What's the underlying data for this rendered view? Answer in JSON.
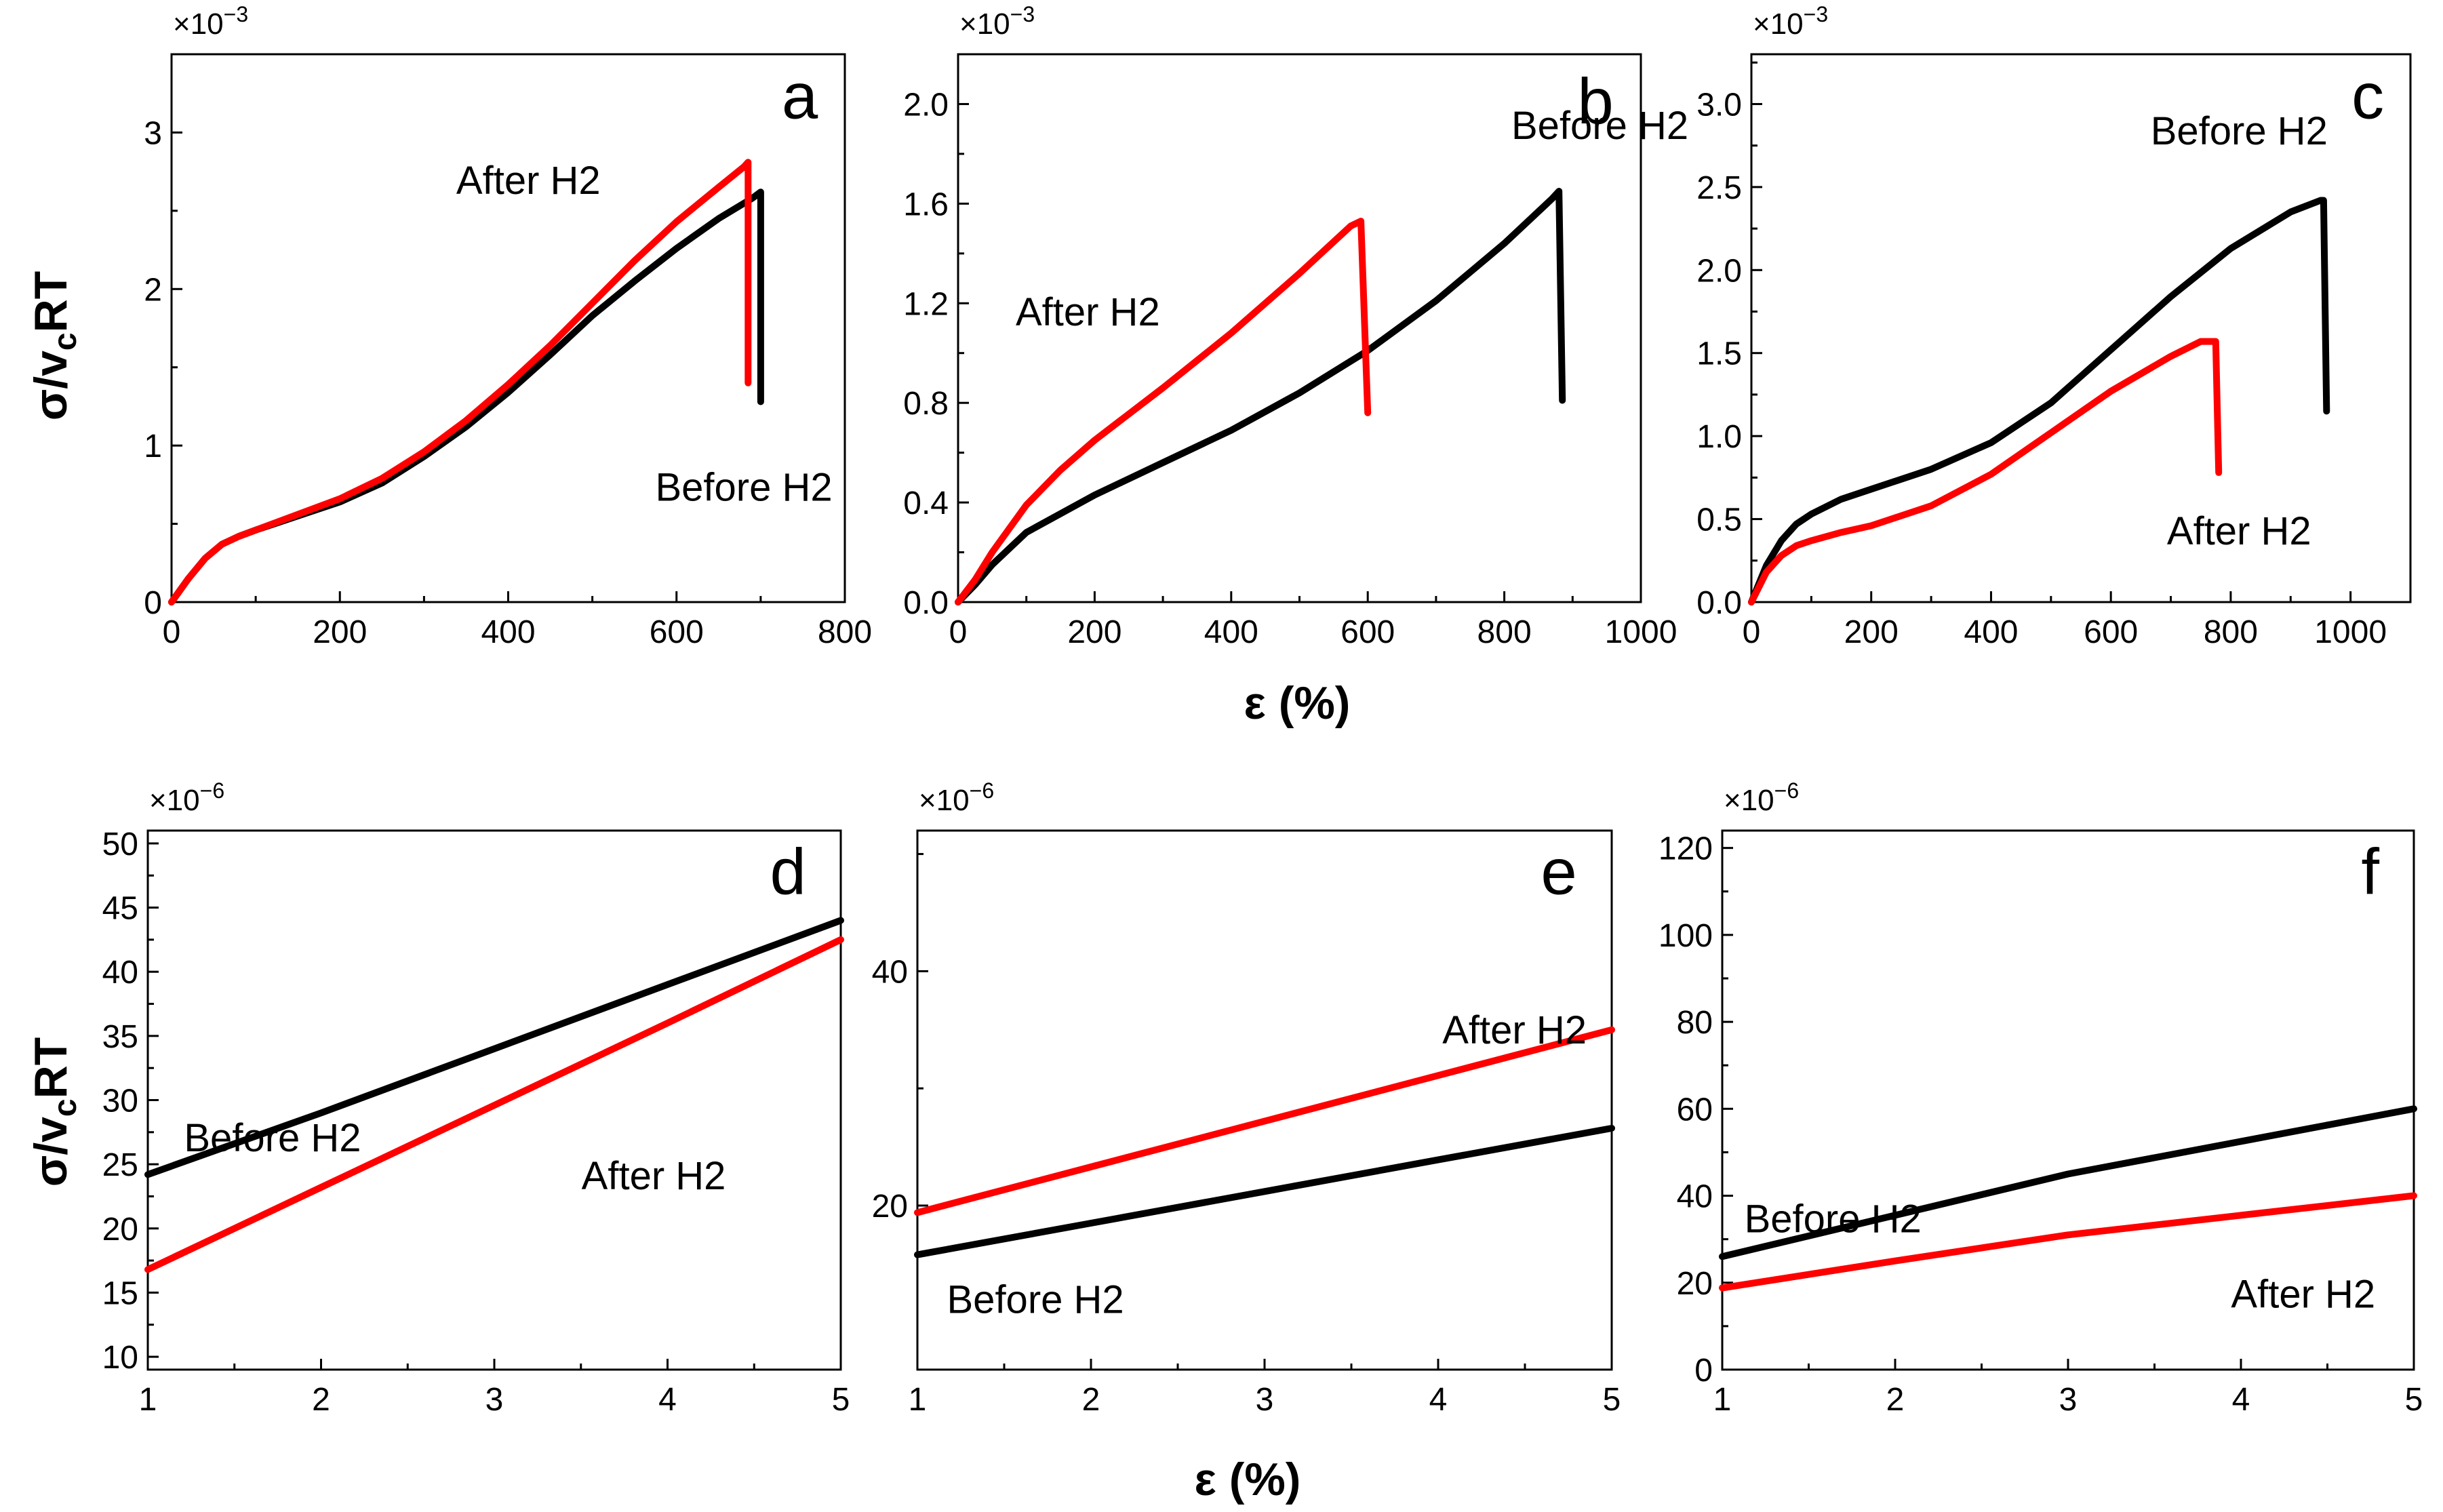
{
  "figure": {
    "ylabel_main": "σ/v",
    "ylabel_sub": "c",
    "ylabel_tail": "RT",
    "xlabel": "ε (%)"
  },
  "colors": {
    "before": "#000000",
    "after": "#ff0000"
  },
  "chart_data": [
    {
      "type": "line",
      "panel": "a",
      "multiplier": "×10",
      "multiplier_exp": "−3",
      "xlim": [
        0,
        800
      ],
      "ylim": [
        0,
        3.5
      ],
      "xticks": [
        0,
        200,
        400,
        600,
        800
      ],
      "xtick_labels": [
        "0",
        "200",
        "400",
        "600",
        "800"
      ],
      "yticks": [
        0,
        1,
        2,
        3
      ],
      "ytick_labels": [
        "0",
        "1",
        "2",
        "3"
      ],
      "series": [
        {
          "name": "Before H2",
          "color": "#000000",
          "x": [
            0,
            20,
            40,
            60,
            80,
            100,
            150,
            200,
            250,
            300,
            350,
            400,
            450,
            500,
            550,
            600,
            650,
            690,
            700,
            700
          ],
          "y": [
            0,
            0.15,
            0.28,
            0.37,
            0.42,
            0.46,
            0.55,
            0.64,
            0.76,
            0.93,
            1.12,
            1.34,
            1.58,
            1.83,
            2.05,
            2.26,
            2.45,
            2.58,
            2.62,
            1.28
          ]
        },
        {
          "name": "After H2",
          "color": "#ff0000",
          "x": [
            0,
            20,
            40,
            60,
            80,
            100,
            150,
            200,
            250,
            300,
            350,
            400,
            450,
            500,
            550,
            600,
            650,
            680,
            685,
            685
          ],
          "y": [
            0,
            0.15,
            0.28,
            0.37,
            0.42,
            0.46,
            0.56,
            0.66,
            0.79,
            0.96,
            1.16,
            1.39,
            1.64,
            1.91,
            2.18,
            2.43,
            2.65,
            2.78,
            2.81,
            1.4
          ]
        }
      ],
      "annotations": [
        "After H2",
        "Before H2"
      ]
    },
    {
      "type": "line",
      "panel": "b",
      "multiplier": "×10",
      "multiplier_exp": "−3",
      "xlim": [
        0,
        1000
      ],
      "ylim": [
        0,
        2.2
      ],
      "xticks": [
        0,
        200,
        400,
        600,
        800,
        1000
      ],
      "xtick_labels": [
        "0",
        "200",
        "400",
        "600",
        "800",
        "1000"
      ],
      "yticks": [
        0,
        0.4,
        0.8,
        1.2,
        1.6,
        2.0
      ],
      "ytick_labels": [
        "0.0",
        "0.4",
        "0.8",
        "1.2",
        "1.6",
        "2.0"
      ],
      "series": [
        {
          "name": "Before H2",
          "color": "#000000",
          "x": [
            0,
            25,
            50,
            100,
            200,
            300,
            400,
            500,
            600,
            700,
            800,
            870,
            880,
            885
          ],
          "y": [
            0,
            0.07,
            0.15,
            0.28,
            0.43,
            0.56,
            0.69,
            0.84,
            1.01,
            1.21,
            1.44,
            1.62,
            1.65,
            0.81
          ]
        },
        {
          "name": "After H2",
          "color": "#ff0000",
          "x": [
            0,
            25,
            50,
            100,
            150,
            200,
            300,
            400,
            500,
            575,
            590,
            600
          ],
          "y": [
            0,
            0.09,
            0.2,
            0.39,
            0.53,
            0.65,
            0.86,
            1.08,
            1.32,
            1.51,
            1.53,
            0.76
          ]
        }
      ],
      "annotations": [
        "After H2",
        "Before H2"
      ]
    },
    {
      "type": "line",
      "panel": "c",
      "multiplier": "×10",
      "multiplier_exp": "−3",
      "xlim": [
        0,
        1100
      ],
      "ylim": [
        0,
        3.3
      ],
      "xticks": [
        0,
        200,
        400,
        600,
        800,
        1000
      ],
      "xtick_labels": [
        "0",
        "200",
        "400",
        "600",
        "800",
        "1000"
      ],
      "yticks": [
        0,
        0.5,
        1.0,
        1.5,
        2.0,
        2.5,
        3.0
      ],
      "ytick_labels": [
        "0.0",
        "0.5",
        "1.0",
        "1.5",
        "2.0",
        "2.5",
        "3.0"
      ],
      "series": [
        {
          "name": "Before H2",
          "color": "#000000",
          "x": [
            0,
            25,
            50,
            75,
            100,
            150,
            200,
            300,
            400,
            500,
            600,
            700,
            800,
            900,
            950,
            955,
            960
          ],
          "y": [
            0,
            0.22,
            0.37,
            0.47,
            0.53,
            0.62,
            0.68,
            0.8,
            0.96,
            1.2,
            1.52,
            1.84,
            2.13,
            2.35,
            2.42,
            2.42,
            1.15
          ]
        },
        {
          "name": "After H2",
          "color": "#ff0000",
          "x": [
            0,
            25,
            50,
            75,
            100,
            150,
            200,
            300,
            400,
            500,
            600,
            700,
            750,
            775,
            780
          ],
          "y": [
            0,
            0.18,
            0.28,
            0.34,
            0.37,
            0.42,
            0.46,
            0.58,
            0.77,
            1.02,
            1.27,
            1.48,
            1.57,
            1.57,
            0.78
          ]
        }
      ],
      "annotations": [
        "Before H2",
        "After H2"
      ]
    },
    {
      "type": "line",
      "panel": "d",
      "multiplier": "×10",
      "multiplier_exp": "−6",
      "xlim": [
        1,
        5
      ],
      "ylim": [
        9,
        51
      ],
      "xticks": [
        1,
        2,
        3,
        4,
        5
      ],
      "xtick_labels": [
        "1",
        "2",
        "3",
        "4",
        "5"
      ],
      "yticks": [
        10,
        15,
        20,
        25,
        30,
        35,
        40,
        45,
        50
      ],
      "ytick_labels": [
        "10",
        "15",
        "20",
        "25",
        "30",
        "35",
        "40",
        "45",
        "50"
      ],
      "series": [
        {
          "name": "Before H2",
          "color": "#000000",
          "x": [
            1,
            2,
            3,
            4,
            5
          ],
          "y": [
            24.2,
            29.0,
            34.0,
            39.0,
            44.0
          ]
        },
        {
          "name": "After H2",
          "color": "#ff0000",
          "x": [
            1,
            2,
            3,
            4,
            5
          ],
          "y": [
            16.8,
            23.2,
            29.6,
            36.0,
            42.5
          ]
        }
      ],
      "annotations": [
        "Before H2",
        "After H2"
      ]
    },
    {
      "type": "line",
      "panel": "e",
      "multiplier": "×10",
      "multiplier_exp": "−6",
      "xlim": [
        1,
        5
      ],
      "ylim": [
        6,
        52
      ],
      "xticks": [
        1,
        2,
        3,
        4,
        5
      ],
      "xtick_labels": [
        "1",
        "2",
        "3",
        "4",
        "5"
      ],
      "yticks": [
        20,
        40
      ],
      "ytick_labels": [
        "20",
        "40"
      ],
      "series": [
        {
          "name": "Before H2",
          "color": "#000000",
          "x": [
            1,
            2,
            3,
            4,
            5
          ],
          "y": [
            15.8,
            18.5,
            21.2,
            23.9,
            26.6
          ]
        },
        {
          "name": "After H2",
          "color": "#ff0000",
          "x": [
            1,
            2,
            3,
            4,
            5
          ],
          "y": [
            19.4,
            23.3,
            27.2,
            31.1,
            35.0
          ]
        }
      ],
      "annotations": [
        "After H2",
        "Before H2"
      ]
    },
    {
      "type": "line",
      "panel": "f",
      "multiplier": "×10",
      "multiplier_exp": "−6",
      "xlim": [
        1,
        5
      ],
      "ylim": [
        0,
        124
      ],
      "xticks": [
        1,
        2,
        3,
        4,
        5
      ],
      "xtick_labels": [
        "1",
        "2",
        "3",
        "4",
        "5"
      ],
      "yticks": [
        0,
        20,
        40,
        60,
        80,
        100,
        120
      ],
      "ytick_labels": [
        "0",
        "20",
        "40",
        "60",
        "80",
        "100",
        "120"
      ],
      "series": [
        {
          "name": "Before H2",
          "color": "#000000",
          "x": [
            1,
            2,
            3,
            4,
            5
          ],
          "y": [
            26.0,
            35.5,
            45.0,
            52.5,
            60.0
          ]
        },
        {
          "name": "After H2",
          "color": "#ff0000",
          "x": [
            1,
            2,
            3,
            4,
            5
          ],
          "y": [
            18.8,
            25.0,
            31.0,
            35.5,
            40.0
          ]
        }
      ],
      "annotations": [
        "Before H2",
        "After H2"
      ]
    }
  ]
}
